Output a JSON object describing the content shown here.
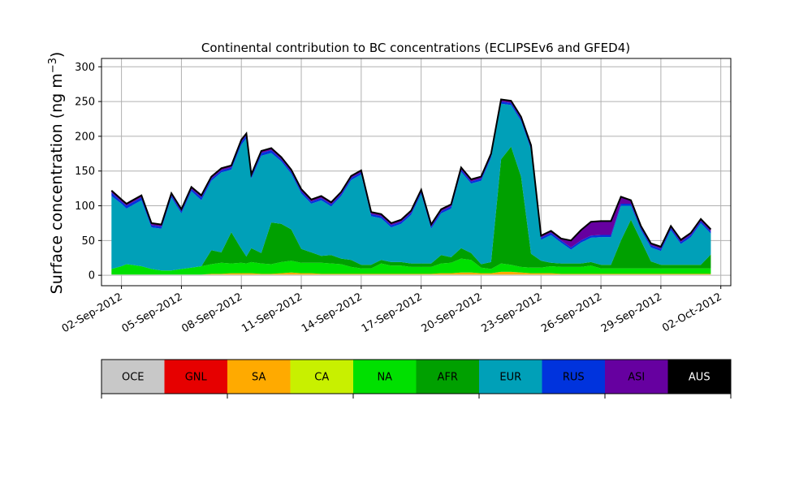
{
  "chart_data": {
    "type": "area",
    "title": "Continental contribution to BC concentrations (ECLIPSEv6 and GFED4)",
    "ylabel_main": "Surface concentration (ng m",
    "ylabel_sup": "−3",
    "ylabel_close": ")",
    "xlabel": "",
    "ylim": [
      -15,
      312
    ],
    "yticks": [
      0,
      50,
      100,
      150,
      200,
      250,
      300
    ],
    "xlim": [
      "2012-09-01",
      "2012-10-02 12:00"
    ],
    "xtick_labels": [
      "02-Sep-2012",
      "05-Sep-2012",
      "08-Sep-2012",
      "11-Sep-2012",
      "14-Sep-2012",
      "17-Sep-2012",
      "20-Sep-2012",
      "23-Sep-2012",
      "26-Sep-2012",
      "29-Sep-2012",
      "02-Oct-2012"
    ],
    "xtick_dates": [
      "2012-09-02",
      "2012-09-05",
      "2012-09-08",
      "2012-09-11",
      "2012-09-14",
      "2012-09-17",
      "2012-09-20",
      "2012-09-23",
      "2012-09-26",
      "2012-09-29",
      "2012-10-02"
    ],
    "grid": true,
    "legend": "bottom colorbar",
    "series": [
      {
        "name": "OCE",
        "color": "#c8c8c8"
      },
      {
        "name": "GNL",
        "color": "#e60000"
      },
      {
        "name": "SA",
        "color": "#ffaa00"
      },
      {
        "name": "CA",
        "color": "#c8f000"
      },
      {
        "name": "NA",
        "color": "#00e000"
      },
      {
        "name": "AFR",
        "color": "#00a000"
      },
      {
        "name": "EUR",
        "color": "#00a0b8"
      },
      {
        "name": "RUS",
        "color": "#0033dd"
      },
      {
        "name": "ASI",
        "color": "#6600a0"
      },
      {
        "name": "AUS",
        "color": "#000000"
      }
    ],
    "x": [
      "2012-09-01 12:00",
      "2012-09-02 00:00",
      "2012-09-02 06:00",
      "2012-09-02 12:00",
      "2012-09-03 00:00",
      "2012-09-03 12:00",
      "2012-09-04 00:00",
      "2012-09-04 12:00",
      "2012-09-05 00:00",
      "2012-09-05 12:00",
      "2012-09-06 00:00",
      "2012-09-06 12:00",
      "2012-09-07 00:00",
      "2012-09-07 12:00",
      "2012-09-08 00:00",
      "2012-09-08 06:00",
      "2012-09-08 12:00",
      "2012-09-09 00:00",
      "2012-09-09 12:00",
      "2012-09-10 00:00",
      "2012-09-10 12:00",
      "2012-09-11 00:00",
      "2012-09-11 12:00",
      "2012-09-12 00:00",
      "2012-09-12 12:00",
      "2012-09-13 00:00",
      "2012-09-13 12:00",
      "2012-09-14 00:00",
      "2012-09-14 12:00",
      "2012-09-15 00:00",
      "2012-09-15 12:00",
      "2012-09-16 00:00",
      "2012-09-16 12:00",
      "2012-09-17 00:00",
      "2012-09-17 12:00",
      "2012-09-18 00:00",
      "2012-09-18 12:00",
      "2012-09-19 00:00",
      "2012-09-19 12:00",
      "2012-09-20 00:00",
      "2012-09-20 12:00",
      "2012-09-21 00:00",
      "2012-09-21 12:00",
      "2012-09-22 00:00",
      "2012-09-22 12:00",
      "2012-09-23 00:00",
      "2012-09-23 12:00",
      "2012-09-24 00:00",
      "2012-09-24 12:00",
      "2012-09-25 00:00",
      "2012-09-25 12:00",
      "2012-09-26 00:00",
      "2012-09-26 12:00",
      "2012-09-27 00:00",
      "2012-09-27 12:00",
      "2012-09-28 00:00",
      "2012-09-28 12:00",
      "2012-09-29 00:00",
      "2012-09-29 12:00",
      "2012-09-30 00:00",
      "2012-09-30 12:00",
      "2012-10-01 00:00",
      "2012-10-01 12:00"
    ],
    "values": {
      "OCE": [
        1,
        1,
        1,
        1,
        1,
        1,
        1,
        1,
        1,
        1,
        1,
        1,
        1,
        1,
        1,
        1,
        1,
        1,
        1,
        1,
        1,
        1,
        1,
        1,
        1,
        1,
        1,
        1,
        1,
        1,
        1,
        1,
        1,
        1,
        1,
        1,
        1,
        1,
        1,
        1,
        1,
        1,
        1,
        1,
        1,
        1,
        1,
        1,
        1,
        1,
        1,
        1,
        1,
        1,
        1,
        1,
        1,
        1,
        1,
        1,
        1,
        1,
        1
      ],
      "GNL": [
        0,
        0,
        0,
        0,
        0,
        0,
        0,
        0,
        0,
        0,
        0,
        0,
        0,
        0,
        0,
        0,
        0,
        0,
        0,
        0,
        0,
        0,
        0,
        0,
        0,
        0,
        0,
        0,
        0,
        0,
        0,
        0,
        0,
        0,
        0,
        0,
        0,
        0,
        0,
        0,
        0,
        0,
        0,
        0,
        0,
        0,
        0,
        0,
        0,
        0,
        0,
        0,
        0,
        0,
        0,
        0,
        0,
        0,
        0,
        0,
        0,
        0,
        0
      ],
      "SA": [
        0,
        0,
        0,
        0,
        0,
        0,
        0,
        0,
        0,
        0,
        0,
        1,
        1,
        2,
        2,
        2,
        2,
        1,
        1,
        2,
        3,
        2,
        2,
        1,
        1,
        1,
        1,
        1,
        1,
        1,
        1,
        1,
        1,
        1,
        1,
        2,
        2,
        3,
        3,
        2,
        2,
        4,
        4,
        3,
        2,
        2,
        2,
        1,
        1,
        1,
        1,
        1,
        1,
        1,
        1,
        1,
        1,
        1,
        1,
        1,
        1,
        1,
        1
      ],
      "CA": [
        0,
        0,
        0,
        0,
        0,
        0,
        0,
        0,
        0,
        0,
        0,
        0,
        0,
        0,
        0,
        0,
        0,
        0,
        0,
        0,
        0,
        0,
        0,
        0,
        0,
        0,
        0,
        0,
        0,
        0,
        0,
        0,
        0,
        0,
        0,
        0,
        0,
        0,
        0,
        0,
        0,
        0,
        0,
        0,
        0,
        0,
        0,
        0,
        0,
        0,
        0,
        0,
        0,
        0,
        0,
        0,
        0,
        0,
        0,
        0,
        0,
        0,
        0
      ],
      "NA": [
        8,
        12,
        15,
        14,
        12,
        8,
        6,
        6,
        8,
        10,
        12,
        14,
        16,
        14,
        15,
        14,
        16,
        15,
        14,
        16,
        17,
        15,
        15,
        16,
        15,
        14,
        10,
        8,
        8,
        15,
        12,
        12,
        10,
        10,
        10,
        14,
        15,
        20,
        18,
        8,
        6,
        12,
        10,
        8,
        8,
        8,
        10,
        10,
        10,
        10,
        12,
        8,
        8,
        8,
        8,
        8,
        8,
        8,
        8,
        8,
        8,
        8,
        8
      ],
      "AFR": [
        0,
        0,
        0,
        0,
        0,
        0,
        0,
        0,
        0,
        0,
        0,
        20,
        15,
        45,
        20,
        10,
        20,
        15,
        60,
        55,
        45,
        20,
        15,
        10,
        12,
        8,
        10,
        5,
        5,
        5,
        5,
        5,
        5,
        5,
        5,
        12,
        8,
        15,
        10,
        5,
        10,
        150,
        170,
        130,
        20,
        10,
        5,
        5,
        5,
        5,
        5,
        5,
        5,
        40,
        70,
        40,
        10,
        5,
        5,
        5,
        5,
        5,
        20
      ],
      "EUR": [
        105,
        90,
        80,
        85,
        95,
        60,
        60,
        105,
        80,
        110,
        95,
        100,
        115,
        90,
        150,
        170,
        100,
        140,
        100,
        90,
        80,
        80,
        70,
        80,
        70,
        90,
        115,
        130,
        70,
        60,
        50,
        55,
        70,
        100,
        50,
        60,
        70,
        110,
        100,
        120,
        150,
        80,
        60,
        80,
        150,
        30,
        40,
        30,
        20,
        30,
        35,
        40,
        40,
        50,
        20,
        15,
        20,
        20,
        50,
        30,
        40,
        60,
        30
      ],
      "RUS": [
        5,
        3,
        4,
        4,
        4,
        3,
        3,
        3,
        3,
        3,
        4,
        3,
        3,
        3,
        4,
        4,
        3,
        4,
        4,
        3,
        3,
        3,
        3,
        3,
        3,
        3,
        3,
        3,
        3,
        3,
        3,
        3,
        3,
        3,
        3,
        3,
        3,
        3,
        3,
        3,
        3,
        3,
        3,
        3,
        3,
        3,
        3,
        3,
        3,
        3,
        3,
        3,
        3,
        3,
        3,
        3,
        3,
        3,
        3,
        3,
        3,
        3,
        3
      ],
      "ASI": [
        3,
        3,
        3,
        3,
        3,
        3,
        3,
        3,
        3,
        3,
        3,
        3,
        3,
        3,
        3,
        3,
        3,
        3,
        3,
        3,
        3,
        3,
        3,
        3,
        3,
        3,
        3,
        3,
        3,
        3,
        3,
        3,
        3,
        3,
        3,
        3,
        3,
        3,
        3,
        3,
        3,
        3,
        3,
        3,
        3,
        3,
        3,
        3,
        10,
        15,
        20,
        20,
        20,
        10,
        5,
        3,
        3,
        3,
        3,
        3,
        3,
        3,
        3
      ],
      "AUS": [
        0,
        0,
        0,
        0,
        0,
        0,
        0,
        0,
        0,
        0,
        0,
        0,
        0,
        0,
        0,
        0,
        0,
        0,
        0,
        0,
        0,
        0,
        0,
        0,
        0,
        0,
        0,
        0,
        0,
        0,
        0,
        0,
        0,
        0,
        0,
        0,
        0,
        0,
        0,
        0,
        0,
        0,
        0,
        0,
        0,
        0,
        0,
        0,
        0,
        0,
        0,
        0,
        0,
        0,
        0,
        0,
        0,
        0,
        0,
        0,
        0,
        0,
        0
      ]
    }
  }
}
